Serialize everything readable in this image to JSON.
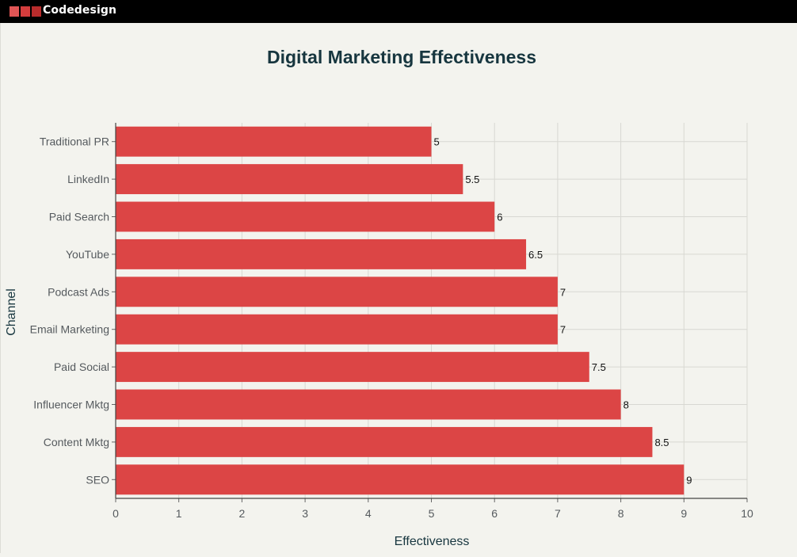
{
  "header": {
    "brand": "Codedesign",
    "logo_colors": [
      "#e05555",
      "#d43d3d",
      "#b82c2c"
    ]
  },
  "colors": {
    "bar": "#dc4545",
    "title": "#17363f",
    "axis_text": "#555a5e",
    "grid": "#d8d8d2",
    "background": "#f3f3ee"
  },
  "chart_data": {
    "type": "bar",
    "orientation": "horizontal",
    "title": "Digital Marketing Effectiveness",
    "xlabel": "Effectiveness",
    "ylabel": "Channel",
    "xlim": [
      0,
      10
    ],
    "xticks": [
      0,
      1,
      2,
      3,
      4,
      5,
      6,
      7,
      8,
      9,
      10
    ],
    "grid": true,
    "legend": "none",
    "categories": [
      "Traditional PR",
      "LinkedIn",
      "Paid Search",
      "YouTube",
      "Podcast Ads",
      "Email Marketing",
      "Paid Social",
      "Influencer Mktg",
      "Content Mktg",
      "SEO"
    ],
    "values": [
      5,
      5.5,
      6,
      6.5,
      7,
      7,
      7.5,
      8,
      8.5,
      9
    ]
  }
}
